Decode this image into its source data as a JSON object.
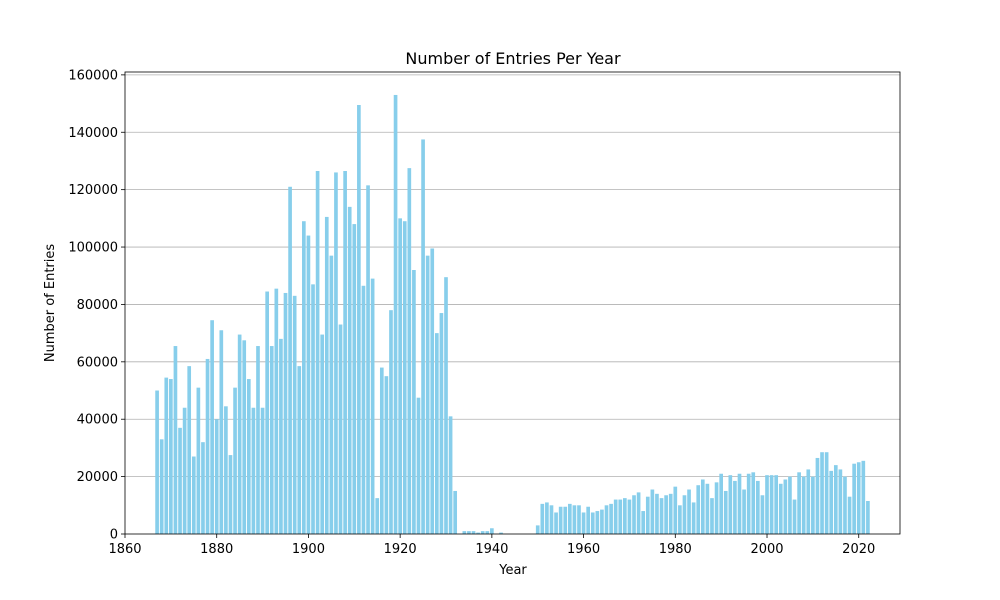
{
  "chart_data": {
    "type": "bar",
    "title": "Number of Entries Per Year",
    "xlabel": "Year",
    "ylabel": "Number of Entries",
    "xlim": [
      1860,
      2029
    ],
    "ylim": [
      0,
      161000
    ],
    "xticks": [
      1860,
      1880,
      1900,
      1920,
      1940,
      1960,
      1980,
      2000,
      2020
    ],
    "yticks": [
      0,
      20000,
      40000,
      60000,
      80000,
      100000,
      120000,
      140000,
      160000
    ],
    "grid": "y",
    "bar_color": "#87CEEB",
    "x": [
      1867,
      1868,
      1869,
      1870,
      1871,
      1872,
      1873,
      1874,
      1875,
      1876,
      1877,
      1878,
      1879,
      1880,
      1881,
      1882,
      1883,
      1884,
      1885,
      1886,
      1887,
      1888,
      1889,
      1890,
      1891,
      1892,
      1893,
      1894,
      1895,
      1896,
      1897,
      1898,
      1899,
      1900,
      1901,
      1902,
      1903,
      1904,
      1905,
      1906,
      1907,
      1908,
      1909,
      1910,
      1911,
      1912,
      1913,
      1914,
      1915,
      1916,
      1917,
      1918,
      1919,
      1920,
      1921,
      1922,
      1923,
      1924,
      1925,
      1926,
      1927,
      1928,
      1929,
      1930,
      1931,
      1932,
      1933,
      1934,
      1935,
      1936,
      1937,
      1938,
      1939,
      1940,
      1941,
      1942,
      1943,
      1944,
      1945,
      1946,
      1947,
      1948,
      1949,
      1950,
      1951,
      1952,
      1953,
      1954,
      1955,
      1956,
      1957,
      1958,
      1959,
      1960,
      1961,
      1962,
      1963,
      1964,
      1965,
      1966,
      1967,
      1968,
      1969,
      1970,
      1971,
      1972,
      1973,
      1974,
      1975,
      1976,
      1977,
      1978,
      1979,
      1980,
      1981,
      1982,
      1983,
      1984,
      1985,
      1986,
      1987,
      1988,
      1989,
      1990,
      1991,
      1992,
      1993,
      1994,
      1995,
      1996,
      1997,
      1998,
      1999,
      2000,
      2001,
      2002,
      2003,
      2004,
      2005,
      2006,
      2007,
      2008,
      2009,
      2010,
      2011,
      2012,
      2013,
      2014,
      2015,
      2016,
      2017,
      2018,
      2019,
      2020,
      2021,
      2022
    ],
    "values": [
      50000,
      33000,
      54500,
      54000,
      65500,
      37000,
      44000,
      58500,
      27000,
      51000,
      32000,
      61000,
      74500,
      40000,
      71000,
      44500,
      27500,
      51000,
      69500,
      67500,
      54000,
      44000,
      65500,
      44000,
      84500,
      65500,
      85500,
      68000,
      84000,
      121000,
      83000,
      58500,
      109000,
      104000,
      87000,
      126500,
      69500,
      110500,
      97000,
      126000,
      73000,
      126500,
      114000,
      108000,
      149500,
      86500,
      121500,
      89000,
      12500,
      58000,
      55000,
      78000,
      153000,
      110000,
      109000,
      127500,
      92000,
      47500,
      137500,
      97000,
      99500,
      70000,
      77000,
      89500,
      41000,
      15000,
      0,
      1000,
      1000,
      1000,
      500,
      1000,
      1000,
      2000,
      0,
      500,
      0,
      0,
      0,
      0,
      0,
      0,
      0,
      3000,
      10500,
      11000,
      10000,
      7500,
      9500,
      9500,
      10500,
      10000,
      10000,
      7500,
      9500,
      7500,
      8000,
      8500,
      10000,
      10500,
      12000,
      12000,
      12500,
      12000,
      13500,
      14500,
      8000,
      13000,
      15500,
      14000,
      12500,
      13500,
      14000,
      16500,
      10000,
      13500,
      15500,
      11000,
      17000,
      19000,
      17500,
      12500,
      18000,
      21000,
      15000,
      20500,
      18500,
      21000,
      15500,
      21000,
      21500,
      18500,
      13500,
      20500,
      20500,
      20500,
      17500,
      19000,
      20000,
      12000,
      21500,
      20000,
      22500,
      20000,
      26500,
      28500,
      28500,
      22000,
      24000,
      22500,
      20000,
      13000,
      24500,
      25000,
      25500,
      11500
    ]
  }
}
